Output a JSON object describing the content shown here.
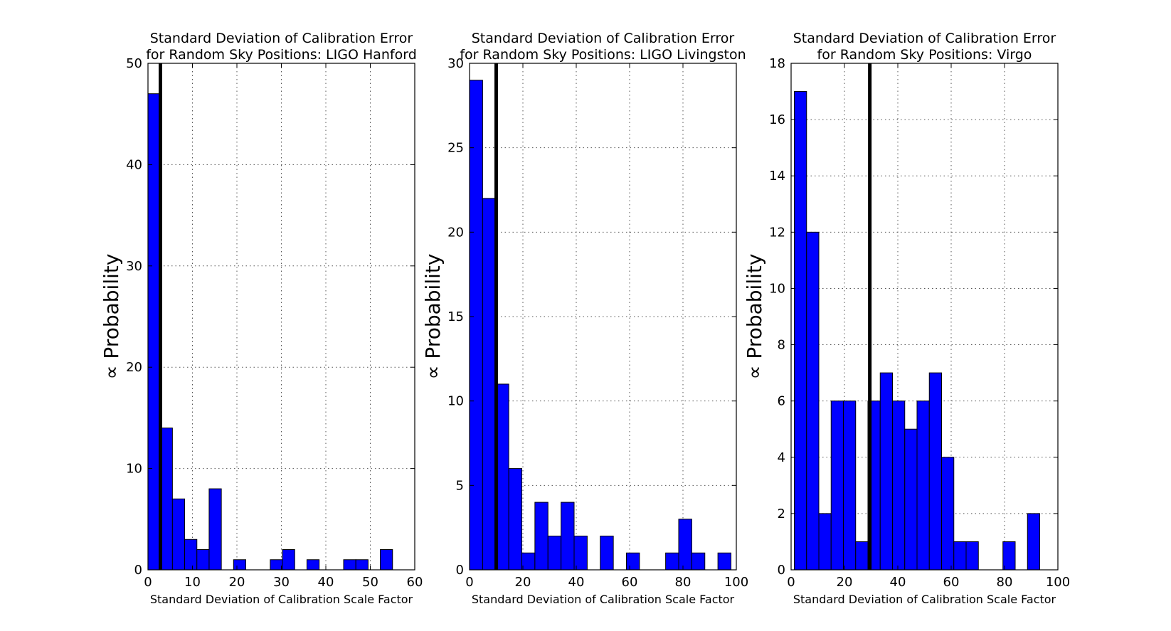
{
  "chart_data": [
    {
      "type": "bar",
      "title_lines": [
        "Standard Deviation of Calibration Error",
        "for Random Sky Positions: LIGO Hanford"
      ],
      "xlabel": "Standard Deviation of Calibration Scale Factor",
      "ylabel": "∝ Probability",
      "xlim": [
        0,
        60
      ],
      "ylim": [
        0,
        50
      ],
      "xticks": [
        0,
        10,
        20,
        30,
        40,
        50,
        60
      ],
      "yticks": [
        0,
        10,
        20,
        30,
        40,
        50
      ],
      "grid": true,
      "bin_start": 0,
      "bin_width": 2.75,
      "values": [
        47,
        14,
        7,
        3,
        2,
        8,
        0,
        1,
        0,
        0,
        1,
        2,
        0,
        1,
        0,
        0,
        1,
        1,
        0,
        2
      ],
      "vertical_line_x": 2.8
    },
    {
      "type": "bar",
      "title_lines": [
        "Standard Deviation of Calibration Error",
        "for Random Sky Positions: LIGO Livingston"
      ],
      "xlabel": "Standard Deviation of Calibration Scale Factor",
      "ylabel": "∝ Probability",
      "xlim": [
        0,
        100
      ],
      "ylim": [
        0,
        30
      ],
      "xticks": [
        0,
        20,
        40,
        60,
        80,
        100
      ],
      "yticks": [
        0,
        5,
        10,
        15,
        20,
        25,
        30
      ],
      "grid": true,
      "bin_start": 0,
      "bin_width": 4.9,
      "values": [
        29,
        22,
        11,
        6,
        1,
        4,
        2,
        4,
        2,
        0,
        2,
        0,
        1,
        0,
        0,
        1,
        3,
        1,
        0,
        1
      ],
      "vertical_line_x": 10
    },
    {
      "type": "bar",
      "title_lines": [
        "Standard Deviation of Calibration Error",
        "for Random Sky Positions: Virgo"
      ],
      "xlabel": "Standard Deviation of Calibration Scale Factor",
      "ylabel": "∝ Probability",
      "xlim": [
        0,
        100
      ],
      "ylim": [
        0,
        18
      ],
      "xticks": [
        0,
        20,
        40,
        60,
        80,
        100
      ],
      "yticks": [
        0,
        2,
        4,
        6,
        8,
        10,
        12,
        14,
        16,
        18
      ],
      "grid": true,
      "bin_start": 1.2,
      "bin_width": 4.6,
      "values": [
        17,
        12,
        2,
        6,
        6,
        1,
        6,
        7,
        6,
        5,
        6,
        7,
        4,
        1,
        1,
        0,
        0,
        1,
        0,
        2
      ],
      "vertical_line_x": 29.5
    }
  ]
}
